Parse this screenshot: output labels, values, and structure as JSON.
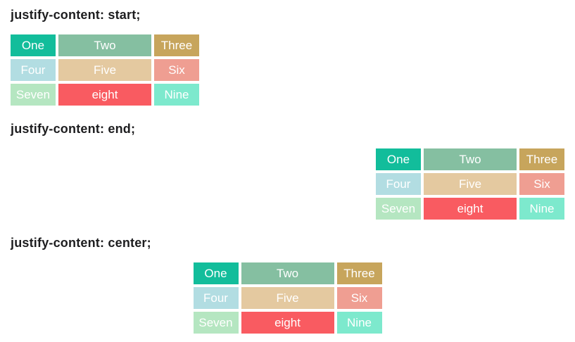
{
  "page": {
    "background": "#ffffff",
    "heading_color": "#1d1d1f",
    "cell_text_color": "#ffffff"
  },
  "sections": [
    {
      "heading": "justify-content: start;",
      "justify": "start",
      "cells": [
        {
          "label": "One",
          "color": "#12bd9b"
        },
        {
          "label": "Two",
          "color": "#85bfa1"
        },
        {
          "label": "Three",
          "color": "#c7a55c"
        },
        {
          "label": "Four",
          "color": "#b2dde2"
        },
        {
          "label": "Five",
          "color": "#e4c9a0"
        },
        {
          "label": "Six",
          "color": "#ef9e92"
        },
        {
          "label": "Seven",
          "color": "#b5e6c1"
        },
        {
          "label": "eight",
          "color": "#f95b61"
        },
        {
          "label": "Nine",
          "color": "#7de9cd"
        }
      ]
    },
    {
      "heading": "justify-content: end;",
      "justify": "end",
      "cells": [
        {
          "label": "One",
          "color": "#12bd9b"
        },
        {
          "label": "Two",
          "color": "#85bfa1"
        },
        {
          "label": "Three",
          "color": "#c7a55c"
        },
        {
          "label": "Four",
          "color": "#b2dde2"
        },
        {
          "label": "Five",
          "color": "#e4c9a0"
        },
        {
          "label": "Six",
          "color": "#ef9e92"
        },
        {
          "label": "Seven",
          "color": "#b5e6c1"
        },
        {
          "label": "eight",
          "color": "#f95b61"
        },
        {
          "label": "Nine",
          "color": "#7de9cd"
        }
      ]
    },
    {
      "heading": "justify-content: center;",
      "justify": "center",
      "cells": [
        {
          "label": "One",
          "color": "#12bd9b"
        },
        {
          "label": "Two",
          "color": "#85bfa1"
        },
        {
          "label": "Three",
          "color": "#c7a55c"
        },
        {
          "label": "Four",
          "color": "#b2dde2"
        },
        {
          "label": "Five",
          "color": "#e4c9a0"
        },
        {
          "label": "Six",
          "color": "#ef9e92"
        },
        {
          "label": "Seven",
          "color": "#b5e6c1"
        },
        {
          "label": "eight",
          "color": "#f95b61"
        },
        {
          "label": "Nine",
          "color": "#7de9cd"
        }
      ]
    }
  ]
}
